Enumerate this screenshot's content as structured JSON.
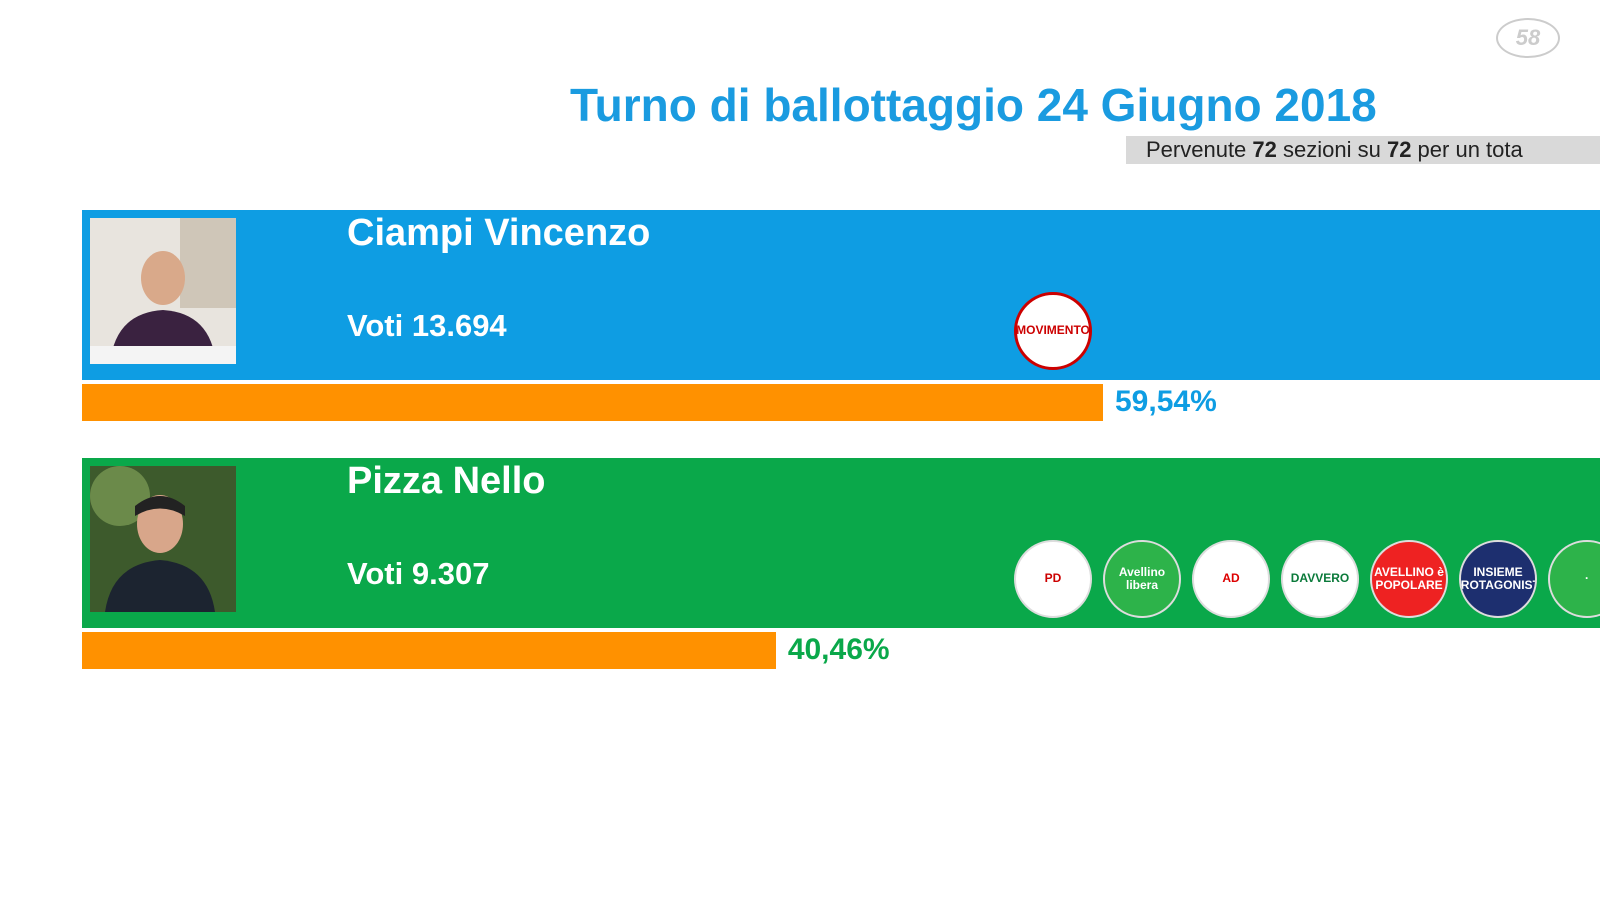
{
  "header": {
    "title": "Turno di ballottaggio 24 Giugno 2018",
    "subtitle": [
      "Pervenute ",
      "72",
      " sezioni su ",
      "72",
      " per un tota"
    ],
    "logo": "58"
  },
  "candidates": [
    {
      "name": "Ciampi Vincenzo",
      "votes": "Voti 13.694",
      "percent": 59.54,
      "percent_label": "59,54%",
      "color": "#0e9de3",
      "parties": [
        "MOVIMENTO"
      ]
    },
    {
      "name": "Pizza Nello",
      "votes": "Voti 9.307",
      "percent": 40.46,
      "percent_label": "40,46%",
      "color": "#0aa84a",
      "parties": [
        "PD",
        "Avellino libera",
        "AD",
        "DAVVERO",
        "AVELLINO è POPOLARE",
        "INSIEME PROTAGONISTI",
        "·"
      ]
    }
  ]
}
